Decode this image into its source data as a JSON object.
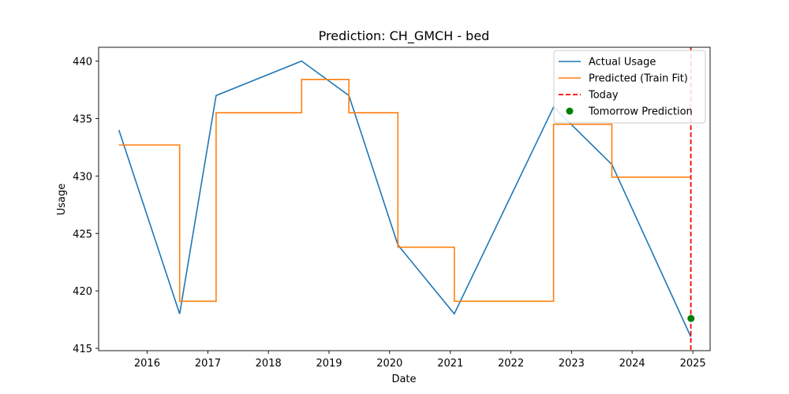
{
  "chart_data": {
    "type": "line",
    "title": "Prediction: CH_GMCH - bed",
    "xlabel": "Date",
    "ylabel": "Usage",
    "x_ticks": [
      "2016",
      "2017",
      "2018",
      "2019",
      "2020",
      "2021",
      "2022",
      "2023",
      "2024",
      "2025"
    ],
    "y_ticks": [
      415,
      420,
      425,
      430,
      435,
      440
    ],
    "xlim": [
      "2015-03-15",
      "2025-04-15"
    ],
    "ylim": [
      414.8,
      441.2
    ],
    "grid": false,
    "legend_position": "top-right",
    "series": [
      {
        "name": "Actual Usage",
        "type": "line",
        "color": "#1f77b4",
        "x": [
          "2015-07-15",
          "2016-07-15",
          "2017-02-20",
          "2018-07-20",
          "2019-05-01",
          "2020-02-20",
          "2021-01-25",
          "2022-09-15",
          "2023-09-01",
          "2024-12-20"
        ],
        "y": [
          434.0,
          418.0,
          437.0,
          440.0,
          437.0,
          424.0,
          418.0,
          436.0,
          431.0,
          416.0
        ]
      },
      {
        "name": "Predicted (Train Fit)",
        "type": "step",
        "color": "#ff7f0e",
        "x": [
          "2015-07-15",
          "2016-07-15",
          "2017-02-20",
          "2018-07-20",
          "2019-05-01",
          "2020-02-20",
          "2021-01-25",
          "2022-09-15",
          "2023-09-01",
          "2024-12-20"
        ],
        "y": [
          432.7,
          419.1,
          435.5,
          438.4,
          435.5,
          423.8,
          419.1,
          434.5,
          429.9,
          429.9
        ]
      },
      {
        "name": "Today",
        "type": "vline",
        "color": "#ff0000",
        "x": "2024-12-20"
      },
      {
        "name": "Tomorrow Prediction",
        "type": "scatter",
        "color": "#008000",
        "x": [
          "2024-12-21"
        ],
        "y": [
          417.6
        ]
      }
    ]
  }
}
